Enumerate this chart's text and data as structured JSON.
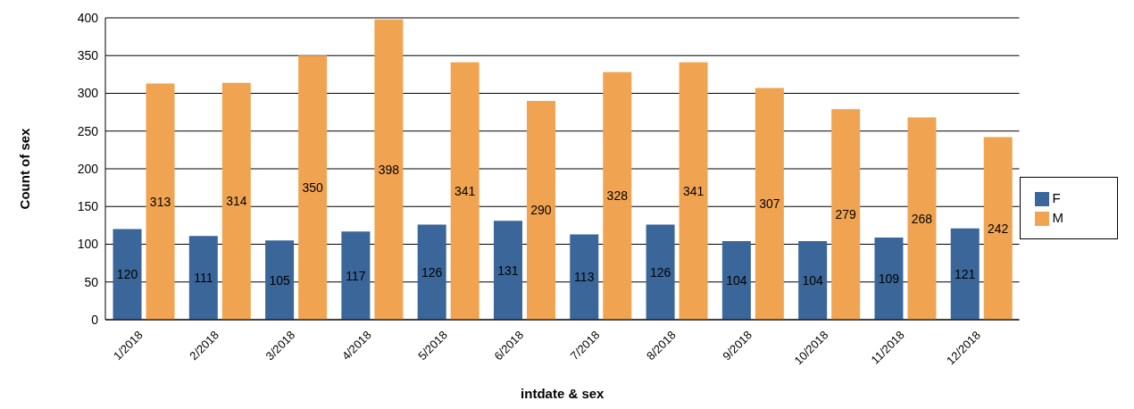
{
  "chart_data": {
    "type": "bar",
    "xlabel": "intdate & sex",
    "ylabel": "Count of sex",
    "categories": [
      "1/2018",
      "2/2018",
      "3/2018",
      "4/2018",
      "5/2018",
      "6/2018",
      "7/2018",
      "8/2018",
      "9/2018",
      "10/2018",
      "11/2018",
      "12/2018"
    ],
    "series": [
      {
        "name": "F",
        "color": "#3a6699",
        "values": [
          120,
          111,
          105,
          117,
          126,
          131,
          113,
          126,
          104,
          104,
          109,
          121
        ]
      },
      {
        "name": "M",
        "color": "#f0a451",
        "values": [
          313,
          314,
          350,
          398,
          341,
          290,
          328,
          341,
          307,
          279,
          268,
          242
        ]
      }
    ],
    "ylim": [
      0,
      400
    ],
    "yticks": [
      0,
      50,
      100,
      150,
      200,
      250,
      300,
      350,
      400
    ],
    "grid": "y",
    "legend": "right",
    "data_labels": true
  }
}
